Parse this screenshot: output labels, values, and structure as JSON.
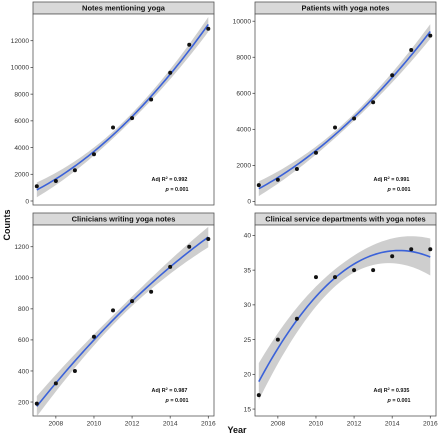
{
  "figure": {
    "xlabel": "Year",
    "ylabel": "Counts"
  },
  "style": {
    "strip_fill": "#d9d9d9",
    "point_color": "#111111",
    "line_color": "#3b62d9",
    "band_color": "#bdbdbd",
    "panel_border": "#555555"
  },
  "chart_data": [
    {
      "type": "scatter",
      "title": "Notes mentioning yoga",
      "x": [
        2007,
        2008,
        2009,
        2010,
        2011,
        2012,
        2013,
        2014,
        2015,
        2016
      ],
      "y": [
        1100,
        1500,
        2300,
        3500,
        5500,
        6200,
        7600,
        9600,
        11700,
        12900
      ],
      "trend": "quadratic fit with confidence band",
      "annotation": {
        "r2_label": "Adj R",
        "r2_value": "= 0.992",
        "p_label": "p",
        "p_value": "= 0.001"
      },
      "xlim": [
        2006.8,
        2016.3
      ],
      "ylim": [
        -300,
        14000
      ],
      "xticks": [
        2008,
        2010,
        2012,
        2014,
        2016
      ],
      "yticks": [
        0,
        2000,
        4000,
        6000,
        8000,
        10000,
        12000
      ],
      "show_xticks": false,
      "grid": false
    },
    {
      "type": "scatter",
      "title": "Patients with yoga notes",
      "x": [
        2007,
        2008,
        2009,
        2010,
        2011,
        2012,
        2013,
        2014,
        2015,
        2016
      ],
      "y": [
        900,
        1200,
        1800,
        2700,
        4100,
        4600,
        5500,
        7000,
        8400,
        9200
      ],
      "trend": "quadratic fit with confidence band",
      "annotation": {
        "r2_label": "Adj R",
        "r2_value": "= 0.991",
        "p_label": "p",
        "p_value": "= 0.001"
      },
      "xlim": [
        2006.8,
        2016.3
      ],
      "ylim": [
        -200,
        10400
      ],
      "xticks": [
        2008,
        2010,
        2012,
        2014,
        2016
      ],
      "yticks": [
        0,
        2000,
        4000,
        6000,
        8000,
        10000
      ],
      "show_xticks": false,
      "grid": false
    },
    {
      "type": "scatter",
      "title": "Clinicians writing yoga notes",
      "x": [
        2007,
        2008,
        2009,
        2010,
        2011,
        2012,
        2013,
        2014,
        2015,
        2016
      ],
      "y": [
        190,
        320,
        400,
        620,
        790,
        850,
        910,
        1070,
        1200,
        1250
      ],
      "trend": "quadratic fit with confidence band",
      "annotation": {
        "r2_label": "Adj R",
        "r2_value": "= 0.987",
        "p_label": "p",
        "p_value": "= 0.001"
      },
      "xlim": [
        2006.8,
        2016.3
      ],
      "ylim": [
        110,
        1340
      ],
      "xticks": [
        2008,
        2010,
        2012,
        2014,
        2016
      ],
      "yticks": [
        200,
        400,
        600,
        800,
        1000,
        1200
      ],
      "show_xticks": true,
      "grid": false
    },
    {
      "type": "scatter",
      "title": "Clinical service departments with yoga notes",
      "x": [
        2007,
        2008,
        2009,
        2010,
        2011,
        2012,
        2013,
        2014,
        2015,
        2016
      ],
      "y": [
        17,
        25,
        28,
        34,
        34,
        35,
        35,
        37,
        38,
        38
      ],
      "trend": "quadratic fit with confidence band",
      "annotation": {
        "r2_label": "Adj R",
        "r2_value": "= 0.935",
        "p_label": "p",
        "p_value": "= 0.001"
      },
      "xlim": [
        2006.8,
        2016.3
      ],
      "ylim": [
        14,
        41.5
      ],
      "xticks": [
        2008,
        2010,
        2012,
        2014,
        2016
      ],
      "yticks": [
        15,
        20,
        25,
        30,
        35,
        40
      ],
      "show_xticks": true,
      "grid": false
    }
  ]
}
